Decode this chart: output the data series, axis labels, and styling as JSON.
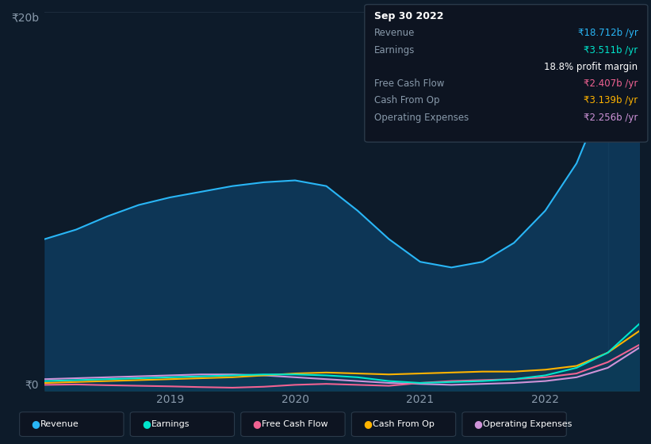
{
  "bg_color": "#0d1b2a",
  "chart_bg": "#0d1b2a",
  "grid_color": "#1e2d3d",
  "title_date": "Sep 30 2022",
  "tooltip": {
    "revenue_val": "₹18.712b /yr",
    "earnings_val": "₹3.511b /yr",
    "profit_margin": "18.8% profit margin",
    "fcf_val": "₹2.407b /yr",
    "cfo_val": "₹3.139b /yr",
    "opex_val": "₹2.256b /yr"
  },
  "y_label_top": "₹20b",
  "y_label_bottom": "₹0",
  "x_ticks": [
    2019,
    2020,
    2021,
    2022
  ],
  "series": {
    "revenue": {
      "color": "#29b6f6",
      "fill_color": "#0d3b5e",
      "label": "Revenue",
      "x": [
        2018.0,
        2018.25,
        2018.5,
        2018.75,
        2019.0,
        2019.25,
        2019.5,
        2019.75,
        2020.0,
        2020.25,
        2020.5,
        2020.75,
        2021.0,
        2021.25,
        2021.5,
        2021.75,
        2022.0,
        2022.25,
        2022.5,
        2022.75
      ],
      "y": [
        8.0,
        8.5,
        9.2,
        9.8,
        10.2,
        10.5,
        10.8,
        11.0,
        11.1,
        10.8,
        9.5,
        8.0,
        6.8,
        6.5,
        6.8,
        7.8,
        9.5,
        12.0,
        16.0,
        18.712
      ]
    },
    "earnings": {
      "color": "#00e5cc",
      "fill_color": "#003d3a",
      "label": "Earnings",
      "x": [
        2018.0,
        2018.25,
        2018.5,
        2018.75,
        2019.0,
        2019.25,
        2019.5,
        2019.75,
        2020.0,
        2020.25,
        2020.5,
        2020.75,
        2021.0,
        2021.25,
        2021.5,
        2021.75,
        2022.0,
        2022.25,
        2022.5,
        2022.75
      ],
      "y": [
        0.5,
        0.55,
        0.6,
        0.65,
        0.7,
        0.75,
        0.8,
        0.85,
        0.85,
        0.8,
        0.7,
        0.5,
        0.4,
        0.45,
        0.5,
        0.6,
        0.8,
        1.2,
        2.0,
        3.511
      ]
    },
    "fcf": {
      "color": "#f06292",
      "fill_color": "#3d1a2a",
      "label": "Free Cash Flow",
      "x": [
        2018.0,
        2018.25,
        2018.5,
        2018.75,
        2019.0,
        2019.25,
        2019.5,
        2019.75,
        2020.0,
        2020.25,
        2020.5,
        2020.75,
        2021.0,
        2021.25,
        2021.5,
        2021.75,
        2022.0,
        2022.25,
        2022.5,
        2022.75
      ],
      "y": [
        0.3,
        0.32,
        0.28,
        0.25,
        0.22,
        0.18,
        0.15,
        0.2,
        0.3,
        0.35,
        0.3,
        0.25,
        0.4,
        0.5,
        0.55,
        0.6,
        0.7,
        0.9,
        1.5,
        2.407
      ]
    },
    "cfo": {
      "color": "#ffb300",
      "fill_color": "#3d2800",
      "label": "Cash From Op",
      "x": [
        2018.0,
        2018.25,
        2018.5,
        2018.75,
        2019.0,
        2019.25,
        2019.5,
        2019.75,
        2020.0,
        2020.25,
        2020.5,
        2020.75,
        2021.0,
        2021.25,
        2021.5,
        2021.75,
        2022.0,
        2022.25,
        2022.5,
        2022.75
      ],
      "y": [
        0.4,
        0.45,
        0.5,
        0.55,
        0.6,
        0.65,
        0.7,
        0.8,
        0.9,
        0.95,
        0.9,
        0.85,
        0.9,
        0.95,
        1.0,
        1.0,
        1.1,
        1.3,
        2.0,
        3.139
      ]
    },
    "opex": {
      "color": "#ce93d8",
      "fill_color": "#2a0a3d",
      "label": "Operating Expenses",
      "x": [
        2018.0,
        2018.25,
        2018.5,
        2018.75,
        2019.0,
        2019.25,
        2019.5,
        2019.75,
        2020.0,
        2020.25,
        2020.5,
        2020.75,
        2021.0,
        2021.25,
        2021.5,
        2021.75,
        2022.0,
        2022.25,
        2022.5,
        2022.75
      ],
      "y": [
        0.6,
        0.65,
        0.7,
        0.75,
        0.8,
        0.85,
        0.85,
        0.8,
        0.7,
        0.6,
        0.5,
        0.4,
        0.35,
        0.3,
        0.35,
        0.4,
        0.5,
        0.7,
        1.2,
        2.256
      ]
    }
  },
  "ylim": [
    0,
    20
  ],
  "xlim": [
    2018.0,
    2022.75
  ],
  "vline_x": 2022.5,
  "legend": [
    {
      "label": "Revenue",
      "color": "#29b6f6"
    },
    {
      "label": "Earnings",
      "color": "#00e5cc"
    },
    {
      "label": "Free Cash Flow",
      "color": "#f06292"
    },
    {
      "label": "Cash From Op",
      "color": "#ffb300"
    },
    {
      "label": "Operating Expenses",
      "color": "#ce93d8"
    }
  ]
}
